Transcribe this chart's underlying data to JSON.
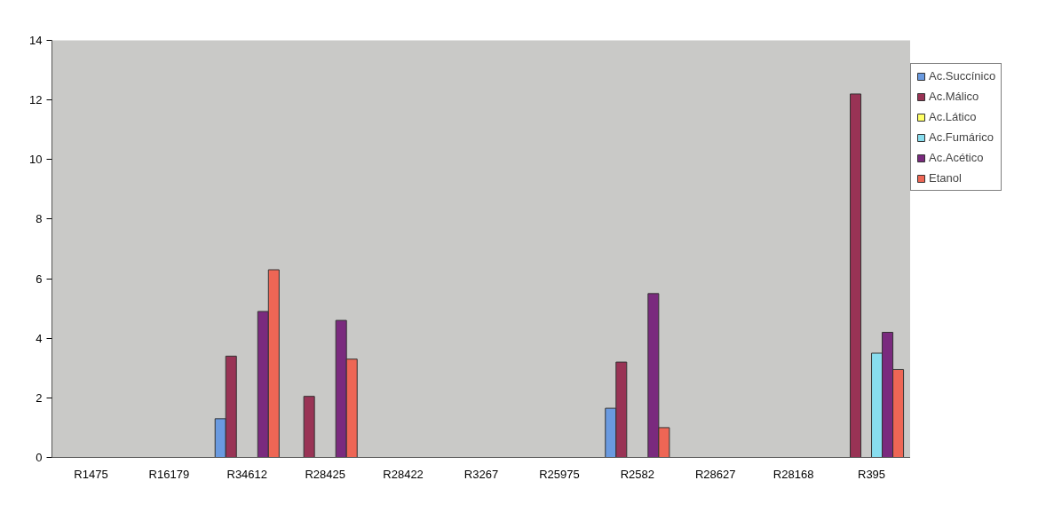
{
  "chart_data": {
    "type": "bar",
    "categories": [
      "R1475",
      "R16179",
      "R34612",
      "R28425",
      "R28422",
      "R3267",
      "R25975",
      "R2582",
      "R28627",
      "R28168",
      "R395"
    ],
    "series": [
      {
        "name": "Ac.Succínico",
        "color": "#6a9ae0",
        "values": [
          null,
          null,
          1.3,
          null,
          null,
          null,
          null,
          1.65,
          null,
          null,
          null
        ]
      },
      {
        "name": "Ac.Málico",
        "color": "#993355",
        "values": [
          null,
          null,
          3.4,
          2.05,
          null,
          null,
          null,
          3.2,
          null,
          null,
          12.2
        ]
      },
      {
        "name": "Ac.Lático",
        "color": "#ffff66",
        "values": [
          null,
          null,
          null,
          null,
          null,
          null,
          null,
          null,
          null,
          null,
          null
        ]
      },
      {
        "name": "Ac.Fumárico",
        "color": "#88ddee",
        "values": [
          null,
          null,
          null,
          null,
          null,
          null,
          null,
          null,
          null,
          null,
          3.5
        ]
      },
      {
        "name": "Ac.Acético",
        "color": "#7a2a7e",
        "values": [
          null,
          null,
          4.9,
          4.6,
          null,
          null,
          null,
          5.5,
          null,
          null,
          4.2
        ]
      },
      {
        "name": "Etanol",
        "color": "#ee6655",
        "values": [
          null,
          null,
          6.3,
          3.3,
          null,
          null,
          null,
          1.0,
          null,
          null,
          2.95
        ]
      }
    ],
    "ylim": [
      0,
      14
    ],
    "yticks": [
      0,
      2,
      4,
      6,
      8,
      10,
      12,
      14
    ],
    "grid": false,
    "legend": "right"
  }
}
